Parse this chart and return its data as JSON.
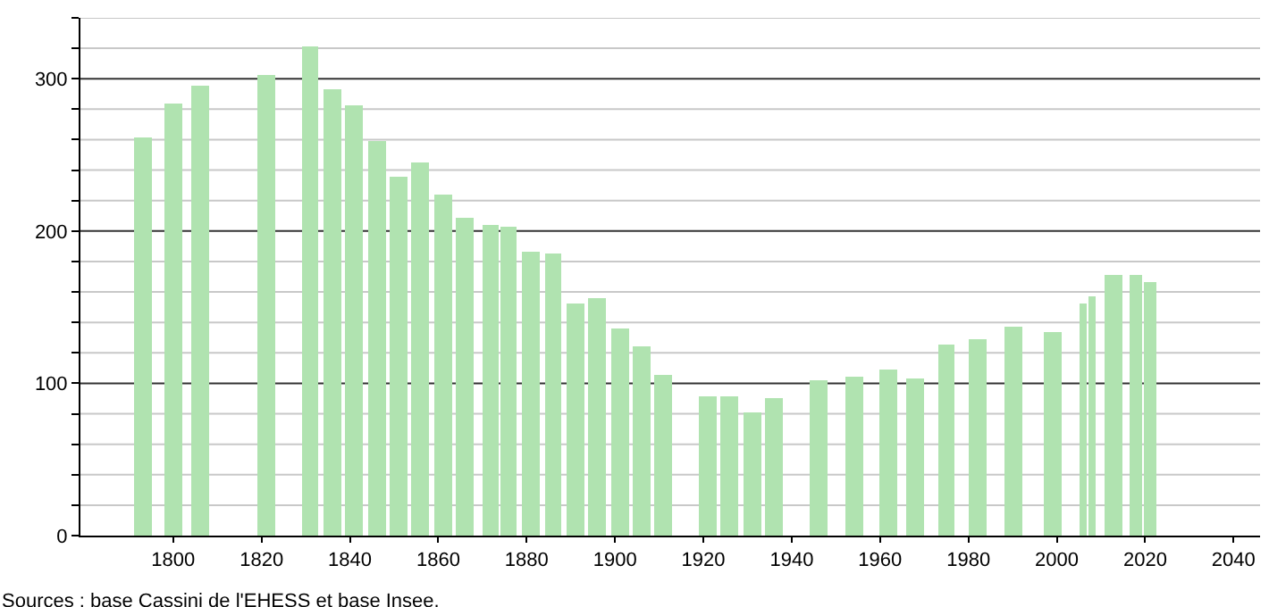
{
  "chart_data": {
    "type": "bar",
    "x": [
      1793,
      1800,
      1806,
      1821,
      1831,
      1836,
      1841,
      1846,
      1851,
      1856,
      1861,
      1866,
      1872,
      1876,
      1881,
      1886,
      1891,
      1896,
      1901,
      1906,
      1911,
      1921,
      1926,
      1931,
      1936,
      1946,
      1954,
      1962,
      1968,
      1975,
      1982,
      1990,
      1999,
      2006,
      2008,
      2013,
      2018,
      2021
    ],
    "series": [
      {
        "color": "#b0e3b0",
        "values": [
          261,
          284,
          295,
          302,
          321,
          293,
          283,
          259,
          236,
          245,
          224,
          209,
          204,
          203,
          186,
          185,
          153,
          156,
          136,
          124,
          106,
          91,
          91,
          81,
          90,
          102,
          104,
          109,
          103,
          126,
          129,
          137,
          134,
          152,
          157,
          171,
          171,
          167
        ]
      }
    ],
    "xlim": [
      1779,
      2046
    ],
    "xticks": [
      1800,
      1820,
      1840,
      1860,
      1880,
      1900,
      1920,
      1940,
      1960,
      1980,
      2000,
      2020,
      2040
    ],
    "ylim": [
      0,
      340
    ],
    "yticks": [
      0,
      {
        "value": 20,
        "label": null
      },
      {
        "value": 40,
        "label": null
      },
      {
        "value": 60,
        "label": null
      },
      {
        "value": 80,
        "label": null
      },
      100,
      {
        "value": 120,
        "label": null
      },
      {
        "value": 140,
        "label": null
      },
      {
        "value": 160,
        "label": null
      },
      {
        "value": 180,
        "label": null
      },
      200,
      {
        "value": 220,
        "label": null
      },
      {
        "value": 240,
        "label": null
      },
      {
        "value": 260,
        "label": null
      },
      {
        "value": 280,
        "label": null
      },
      300,
      {
        "value": 320,
        "label": null
      },
      {
        "value": 340,
        "label": null
      }
    ],
    "grid": "y",
    "annotations": [
      "Sources : base Cassini de l'EHESS et base Insee."
    ]
  }
}
